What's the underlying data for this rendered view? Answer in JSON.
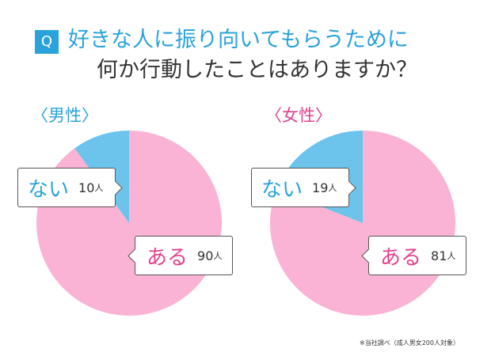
{
  "question_badge": "Q",
  "title": {
    "line1": "好きな人に振り向いてもらうために",
    "line2": "何か行動したことはありますか？"
  },
  "footnote": "※当社調べ（成人男女200人対象）",
  "colors": {
    "yes": "#fbb3d5",
    "no": "#6cc4ec",
    "accent_blue": "#2aa3dc",
    "accent_pink": "#e2418e"
  },
  "chart_data": [
    {
      "type": "pie",
      "title": "〈男性〉",
      "slices": [
        {
          "label": "ある",
          "value": 90,
          "unit": "人"
        },
        {
          "label": "ない",
          "value": 10,
          "unit": "人"
        }
      ]
    },
    {
      "type": "pie",
      "title": "〈女性〉",
      "slices": [
        {
          "label": "ある",
          "value": 81,
          "unit": "人"
        },
        {
          "label": "ない",
          "value": 19,
          "unit": "人"
        }
      ]
    }
  ]
}
